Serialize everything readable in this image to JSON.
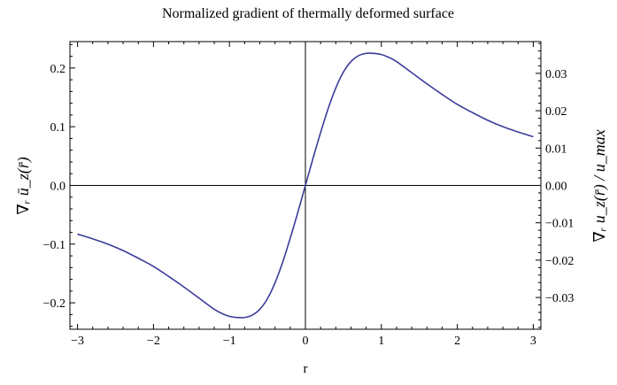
{
  "chart_data": {
    "type": "line",
    "title": "Normalized gradient of thermally deformed surface",
    "xlabel": "r",
    "ylabel_left": "∇ᵣ ū_z(r̄)",
    "ylabel_right": "∇ᵣ u_z(r̄) / u_max",
    "xlim": [
      -3.1,
      3.1
    ],
    "ylim": [
      -0.245,
      0.245
    ],
    "ylim_right": [
      -0.0385,
      0.0385
    ],
    "x_ticks": [
      "−3",
      "−2",
      "−1",
      "0",
      "1",
      "2",
      "3"
    ],
    "y_ticks_left": [
      "−0.2",
      "−0.1",
      "0.0",
      "0.1",
      "0.2"
    ],
    "y_ticks_right": [
      "−0.03",
      "−0.02",
      "−0.01",
      "0.00",
      "0.01",
      "0.02",
      "0.03"
    ],
    "grid": false,
    "series_color": "#3b3b9a",
    "series": [
      {
        "x": [
          -3.0,
          -2.8,
          -2.6,
          -2.4,
          -2.2,
          -2.0,
          -1.8,
          -1.6,
          -1.4,
          -1.2,
          -1.1,
          -1.0,
          -0.9,
          -0.8,
          -0.7,
          -0.6,
          -0.5,
          -0.4,
          -0.3,
          -0.2,
          -0.1,
          0.0,
          0.1,
          0.2,
          0.3,
          0.4,
          0.5,
          0.6,
          0.7,
          0.8,
          0.9,
          1.0,
          1.1,
          1.2,
          1.4,
          1.6,
          1.8,
          2.0,
          2.2,
          2.4,
          2.6,
          2.8,
          3.0
        ],
        "values": [
          -0.083,
          -0.091,
          -0.1,
          -0.111,
          -0.124,
          -0.138,
          -0.155,
          -0.173,
          -0.192,
          -0.211,
          -0.218,
          -0.223,
          -0.225,
          -0.225,
          -0.221,
          -0.211,
          -0.193,
          -0.166,
          -0.131,
          -0.09,
          -0.046,
          0.0,
          0.046,
          0.09,
          0.131,
          0.166,
          0.193,
          0.211,
          0.221,
          0.225,
          0.225,
          0.223,
          0.218,
          0.211,
          0.192,
          0.173,
          0.155,
          0.138,
          0.124,
          0.111,
          0.1,
          0.091,
          0.083
        ]
      }
    ]
  }
}
